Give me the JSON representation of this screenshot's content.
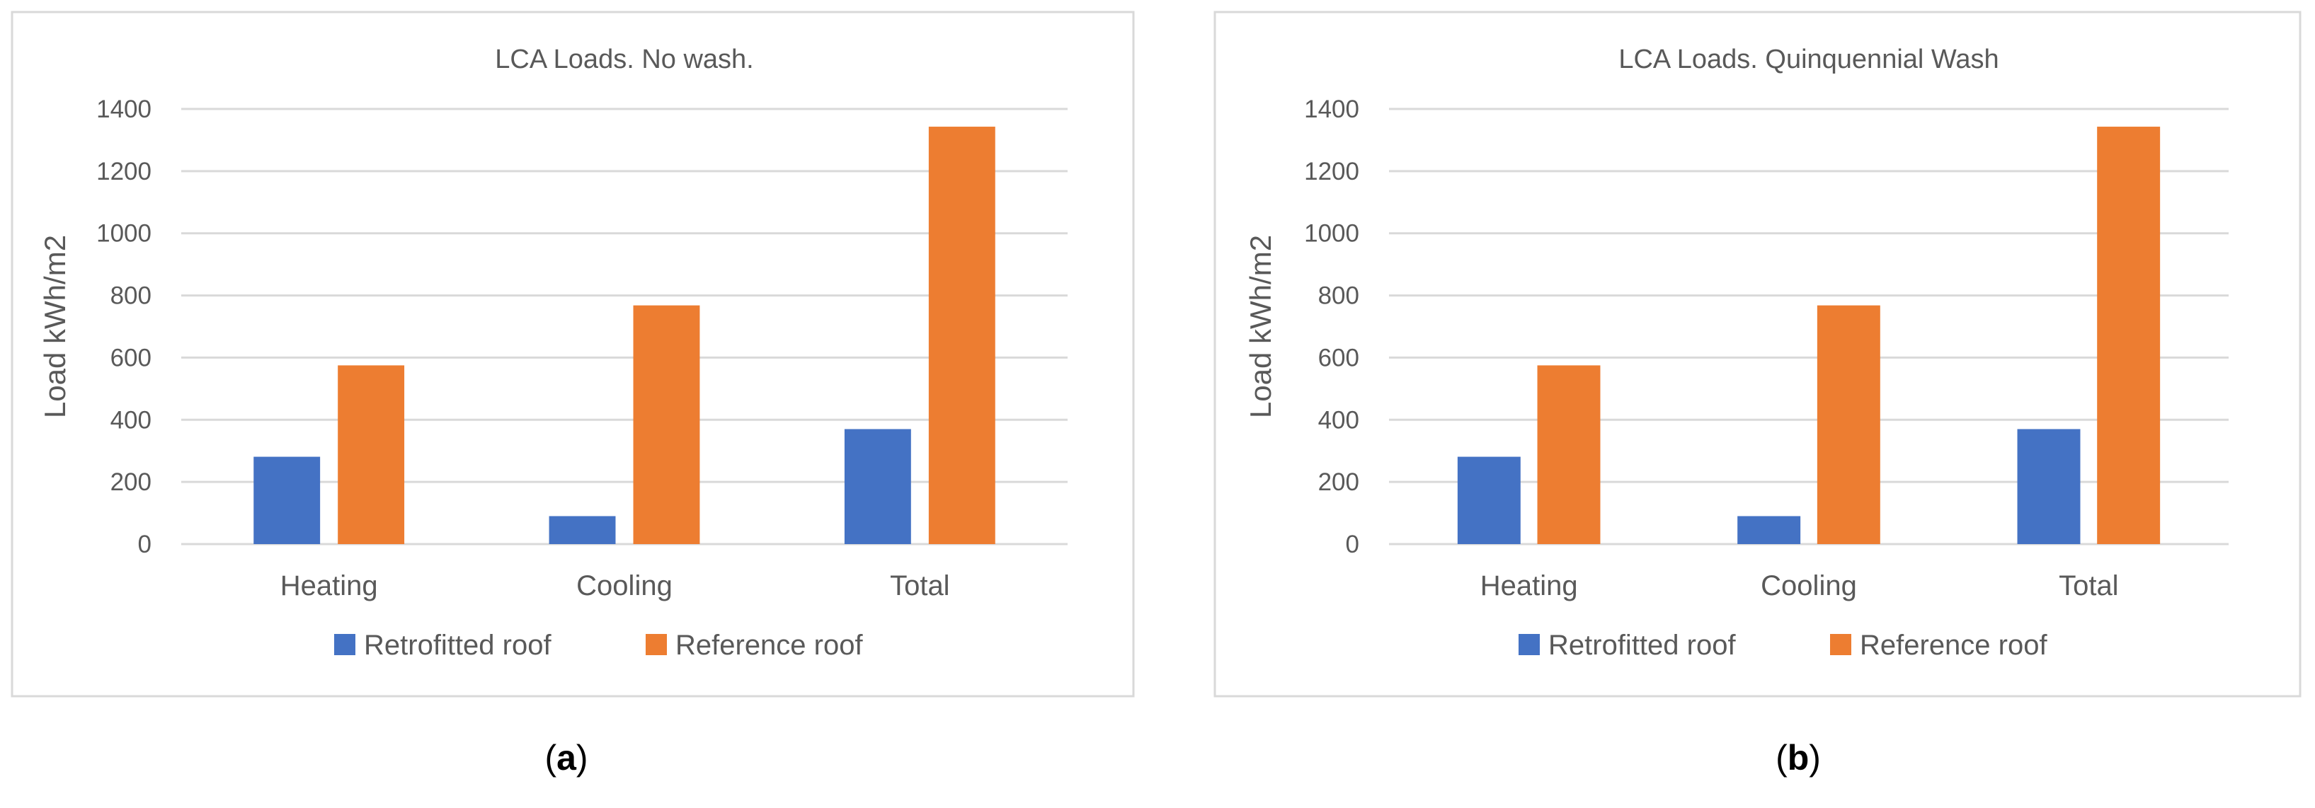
{
  "chart_data": [
    {
      "type": "bar",
      "panel_label": "(a)",
      "panel_letter": "a",
      "title": "LCA Loads. No  wash.",
      "xlabel": "",
      "ylabel": "Load kWh/m2",
      "categories": [
        "Heating",
        "Cooling",
        "Total"
      ],
      "ylim": [
        0,
        1400
      ],
      "yticks": [
        0,
        200,
        400,
        600,
        800,
        1000,
        1200,
        1400
      ],
      "grid": true,
      "legend_position": "bottom",
      "series": [
        {
          "name": "Retrofitted roof",
          "color": "#4472C4",
          "values": [
            281,
            90,
            370
          ]
        },
        {
          "name": "Reference roof",
          "color": "#ED7D31",
          "values": [
            575,
            768,
            1343
          ]
        }
      ]
    },
    {
      "type": "bar",
      "panel_label": "(b)",
      "panel_letter": "b",
      "title": "LCA Loads. Quinquennial Wash",
      "xlabel": "",
      "ylabel": "Load kWh/m2",
      "categories": [
        "Heating",
        "Cooling",
        "Total"
      ],
      "ylim": [
        0,
        1400
      ],
      "yticks": [
        0,
        200,
        400,
        600,
        800,
        1000,
        1200,
        1400
      ],
      "grid": true,
      "legend_position": "bottom",
      "series": [
        {
          "name": "Retrofitted roof",
          "color": "#4472C4",
          "values": [
            281,
            90,
            370
          ]
        },
        {
          "name": "Reference roof",
          "color": "#ED7D31",
          "values": [
            575,
            768,
            1343
          ]
        }
      ]
    }
  ]
}
